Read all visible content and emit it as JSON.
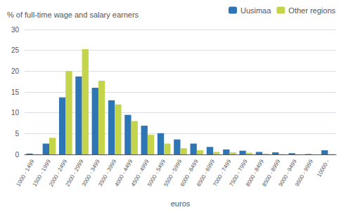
{
  "chart_data": {
    "type": "bar",
    "ylabel": "% of full-time wage and salary earners",
    "xlabel": "euros",
    "categories": [
      "1000 - 1499",
      "1500 - 1999",
      "2000 - 2499",
      "2500 - 2999",
      "3000 - 3499",
      "3500 - 3999",
      "4000 - 4499",
      "4500 - 4999",
      "5000 - 5499",
      "5500 - 5999",
      "6000 - 6499",
      "6500 - 6999",
      "7000 - 7499",
      "7500 - 7999",
      "8000 - 8499",
      "8500 - 8999",
      "9000 - 9499",
      "9500 - 9999",
      "10000 -"
    ],
    "series": [
      {
        "name": "Uusimaa",
        "color": "#2E75B6",
        "values": [
          0.2,
          2.6,
          13.7,
          18.7,
          16.0,
          13.0,
          9.5,
          6.9,
          5.1,
          3.6,
          2.6,
          1.8,
          1.2,
          0.9,
          0.6,
          0.5,
          0.3,
          0.1,
          1.0
        ]
      },
      {
        "name": "Other regions",
        "color": "#C4D44B",
        "values": [
          0.1,
          4.0,
          20.0,
          25.3,
          17.7,
          12.0,
          8.0,
          4.7,
          2.6,
          1.5,
          1.0,
          0.6,
          0.5,
          0.4,
          0.2,
          0.1,
          0.05,
          0.02,
          0.1
        ]
      }
    ],
    "ylim": [
      0,
      30
    ],
    "yticks": [
      0,
      5,
      10,
      15,
      20,
      25,
      30
    ],
    "grid": true,
    "legend": "upper right"
  }
}
